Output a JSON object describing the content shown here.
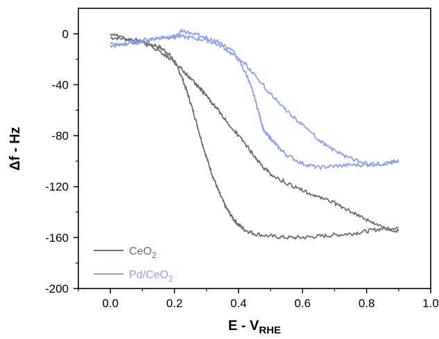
{
  "chart_data": {
    "type": "line",
    "title": "",
    "xlabel": {
      "main": "E - V",
      "sub": "RHE"
    },
    "ylabel": "Δf - Hz",
    "xlim": [
      -0.1,
      1.0
    ],
    "ylim": [
      -200,
      20
    ],
    "x_ticks": [
      "0.0",
      "0.2",
      "0.4",
      "0.6",
      "0.8",
      "1.0"
    ],
    "y_ticks": [
      "0",
      "-40",
      "-80",
      "-120",
      "-160",
      "-200"
    ],
    "grid": false,
    "legend_position": "bottom-left",
    "series": [
      {
        "name": "CeO2",
        "legend_label": {
          "main": "CeO",
          "sub": "2"
        },
        "color": "#6e6e6e",
        "segments": [
          {
            "x": [
              0.0,
              0.05,
              0.1,
              0.15,
              0.18,
              0.2,
              0.22,
              0.24,
              0.26,
              0.28,
              0.3,
              0.32,
              0.34,
              0.36,
              0.38,
              0.4,
              0.42,
              0.45,
              0.5,
              0.55,
              0.6,
              0.65,
              0.7,
              0.75,
              0.8,
              0.85,
              0.9
            ],
            "y": [
              -3,
              -4,
              -6,
              -10,
              -15,
              -22,
              -32,
              -46,
              -62,
              -80,
              -97,
              -112,
              -125,
              -136,
              -144,
              -150,
              -154,
              -157,
              -159,
              -160,
              -160,
              -159,
              -158,
              -157,
              -155,
              -153,
              -152
            ]
          },
          {
            "x": [
              0.9,
              0.85,
              0.8,
              0.75,
              0.7,
              0.65,
              0.6,
              0.55,
              0.5,
              0.47,
              0.44,
              0.41,
              0.38,
              0.35,
              0.32,
              0.3,
              0.28,
              0.25,
              0.22,
              0.2,
              0.15,
              0.1,
              0.05,
              0.0
            ],
            "y": [
              -155,
              -152,
              -146,
              -139,
              -133,
              -128,
              -123,
              -117,
              -110,
              -103,
              -93,
              -83,
              -74,
              -64,
              -55,
              -49,
              -43,
              -35,
              -27,
              -22,
              -13,
              -7,
              -4,
              0
            ]
          }
        ]
      },
      {
        "name": "Pd/CeO2",
        "legend_label": {
          "main": "Pd/CeO",
          "sub": "2"
        },
        "color": "#8c9ff5",
        "segments": [
          {
            "x": [
              0.0,
              0.05,
              0.1,
              0.15,
              0.2,
              0.25,
              0.3,
              0.35,
              0.4,
              0.43,
              0.45,
              0.47,
              0.48,
              0.5,
              0.52,
              0.55,
              0.6,
              0.65,
              0.7,
              0.75,
              0.8,
              0.85,
              0.9
            ],
            "y": [
              -10,
              -8,
              -5,
              -3,
              -2,
              -3,
              -5,
              -10,
              -20,
              -35,
              -50,
              -68,
              -77,
              -82,
              -88,
              -95,
              -102,
              -105,
              -104,
              -103,
              -103,
              -102,
              -101
            ]
          },
          {
            "x": [
              0.9,
              0.85,
              0.8,
              0.75,
              0.7,
              0.65,
              0.6,
              0.55,
              0.5,
              0.45,
              0.4,
              0.35,
              0.3,
              0.25,
              0.22,
              0.2,
              0.15,
              0.1,
              0.05,
              0.0
            ],
            "y": [
              -100,
              -102,
              -102,
              -98,
              -92,
              -83,
              -72,
              -60,
              -47,
              -32,
              -18,
              -8,
              -3,
              1,
              2,
              -3,
              -3,
              -7,
              -8,
              -8
            ]
          }
        ]
      }
    ]
  }
}
